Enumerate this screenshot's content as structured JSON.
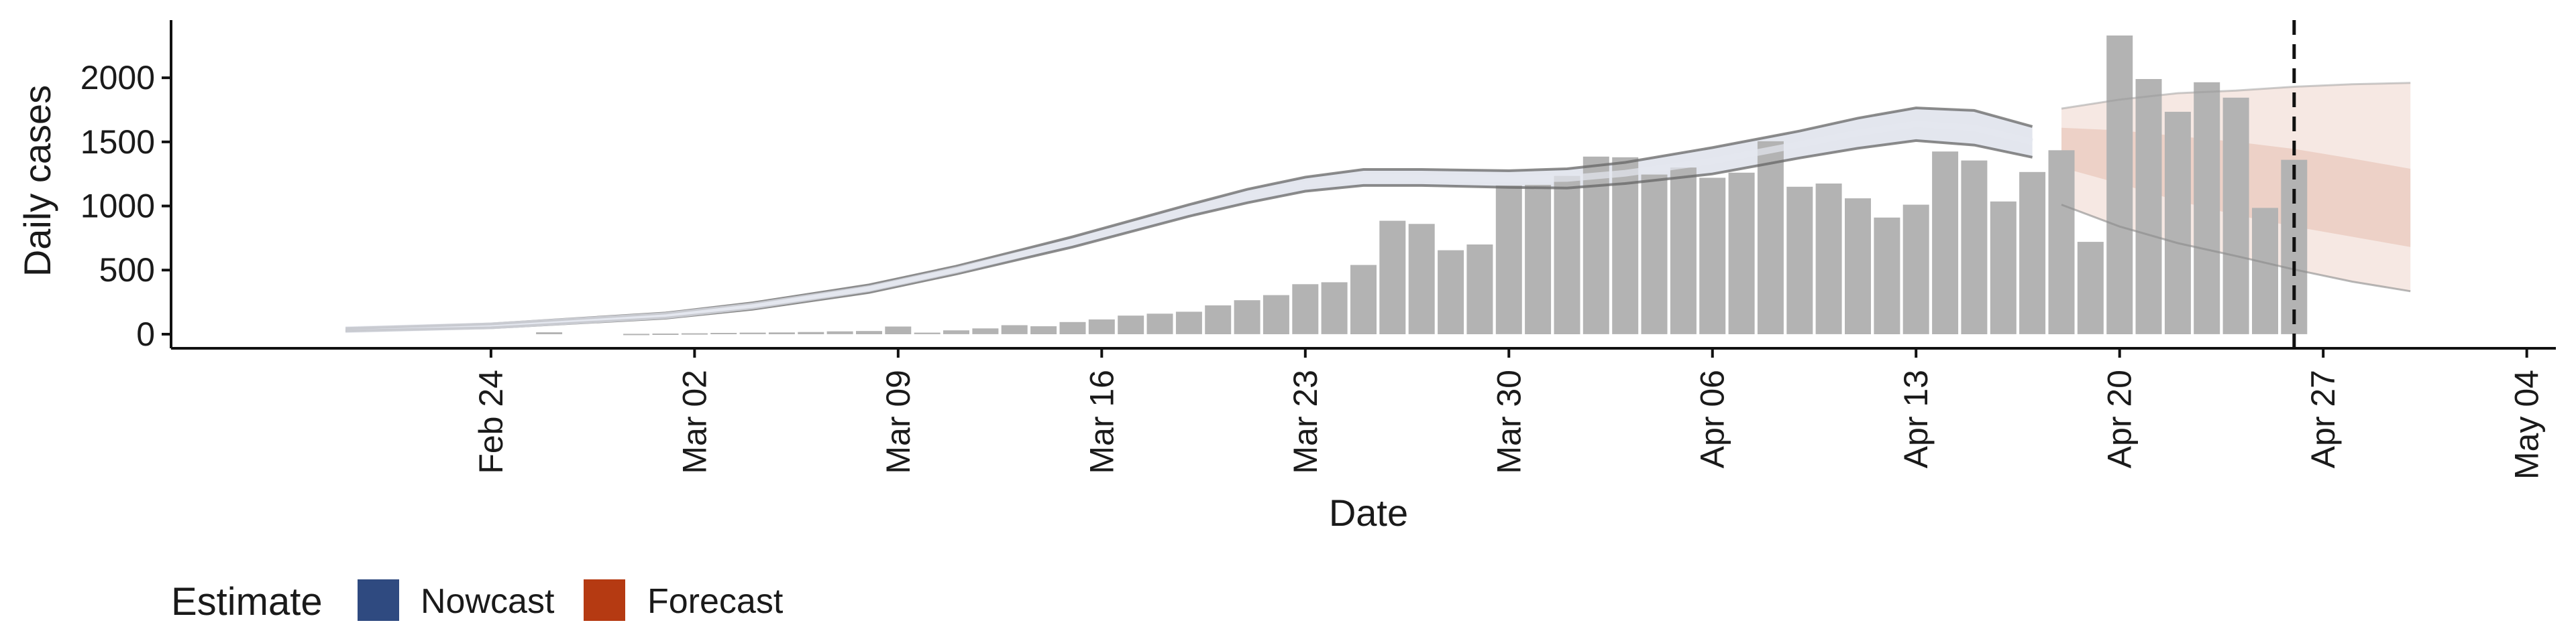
{
  "chart_data": {
    "type": "bar",
    "xlabel": "Date",
    "ylabel": "Daily cases",
    "x_axis": {
      "ticks": [
        "2020-02-24",
        "2020-03-02",
        "2020-03-09",
        "2020-03-16",
        "2020-03-23",
        "2020-03-30",
        "2020-04-06",
        "2020-04-13",
        "2020-04-20",
        "2020-04-27",
        "2020-05-04"
      ],
      "tick_labels": [
        "Feb 24",
        "Mar 02",
        "Mar 09",
        "Mar 16",
        "Mar 23",
        "Mar 30",
        "Apr 06",
        "Apr 13",
        "Apr 20",
        "Apr 27",
        "May 04"
      ],
      "range": [
        "2020-02-13",
        "2020-05-05"
      ]
    },
    "y_axis": {
      "ticks": [
        0,
        500,
        1000,
        1500,
        2000
      ],
      "range": [
        -110,
        2450
      ]
    },
    "grid": false,
    "reference_line": {
      "date": "2020-04-26",
      "style": "dashed"
    },
    "reported_cases": {
      "color": "#b3b3b3",
      "dates": [
        "2020-02-26",
        "2020-02-29",
        "2020-03-01",
        "2020-03-02",
        "2020-03-03",
        "2020-03-04",
        "2020-03-05",
        "2020-03-06",
        "2020-03-07",
        "2020-03-08",
        "2020-03-09",
        "2020-03-10",
        "2020-03-11",
        "2020-03-12",
        "2020-03-13",
        "2020-03-14",
        "2020-03-15",
        "2020-03-16",
        "2020-03-17",
        "2020-03-18",
        "2020-03-19",
        "2020-03-20",
        "2020-03-21",
        "2020-03-22",
        "2020-03-23",
        "2020-03-24",
        "2020-03-25",
        "2020-03-26",
        "2020-03-27",
        "2020-03-28",
        "2020-03-29",
        "2020-03-30",
        "2020-03-31",
        "2020-04-01",
        "2020-04-02",
        "2020-04-03",
        "2020-04-04",
        "2020-04-05",
        "2020-04-06",
        "2020-04-07",
        "2020-04-08",
        "2020-04-09",
        "2020-04-10",
        "2020-04-11",
        "2020-04-12",
        "2020-04-13",
        "2020-04-14",
        "2020-04-15",
        "2020-04-16",
        "2020-04-17",
        "2020-04-18",
        "2020-04-19",
        "2020-04-20",
        "2020-04-21",
        "2020-04-22",
        "2020-04-23",
        "2020-04-24",
        "2020-04-25",
        "2020-04-26"
      ],
      "values": [
        15,
        3,
        5,
        7,
        10,
        12,
        14,
        17,
        22,
        25,
        60,
        12,
        30,
        45,
        70,
        62,
        95,
        115,
        145,
        160,
        175,
        225,
        265,
        305,
        390,
        405,
        540,
        885,
        860,
        655,
        700,
        1160,
        1165,
        1235,
        1385,
        1380,
        1245,
        1300,
        1220,
        1260,
        1505,
        1150,
        1175,
        1060,
        910,
        1010,
        1425,
        1355,
        1035,
        1265,
        1435,
        720,
        2330,
        1990,
        1735,
        1965,
        1845,
        985,
        1360
      ]
    },
    "series": [
      {
        "name": "Nowcast",
        "color": "#3b4f86",
        "dates": [
          "2020-02-19",
          "2020-02-24",
          "2020-03-01",
          "2020-03-04",
          "2020-03-08",
          "2020-03-11",
          "2020-03-15",
          "2020-03-19",
          "2020-03-21",
          "2020-03-23",
          "2020-03-25",
          "2020-03-27",
          "2020-03-30",
          "2020-04-01",
          "2020-04-03",
          "2020-04-06",
          "2020-04-09",
          "2020-04-11",
          "2020-04-13",
          "2020-04-15",
          "2020-04-17"
        ],
        "median": [
          35,
          65,
          145,
          220,
          355,
          500,
          720,
          965,
          1075,
          1170,
          1225,
          1220,
          1210,
          1215,
          1255,
          1350,
          1480,
          1570,
          1640,
          1610,
          1500
        ],
        "upper_90": [
          45,
          80,
          165,
          245,
          385,
          530,
          760,
          1010,
          1130,
          1225,
          1285,
          1285,
          1275,
          1290,
          1340,
          1455,
          1585,
          1685,
          1765,
          1745,
          1620
        ],
        "lower_90": [
          25,
          50,
          125,
          195,
          325,
          470,
          680,
          920,
          1025,
          1115,
          1160,
          1160,
          1145,
          1140,
          1175,
          1250,
          1375,
          1450,
          1510,
          1475,
          1380
        ]
      },
      {
        "name": "Forecast",
        "color": "#b5441b",
        "dates": [
          "2020-04-18",
          "2020-04-20",
          "2020-04-22",
          "2020-04-24",
          "2020-04-26",
          "2020-04-28",
          "2020-04-30"
        ],
        "upper_90": [
          1760,
          1830,
          1880,
          1900,
          1930,
          1950,
          1960
        ],
        "upper_50": [
          1610,
          1590,
          1545,
          1500,
          1445,
          1370,
          1290
        ],
        "lower_50": [
          1300,
          1175,
          1040,
          930,
          840,
          760,
          680
        ],
        "lower_90": [
          1010,
          840,
          710,
          610,
          505,
          410,
          335
        ]
      }
    ],
    "legend": {
      "title": "Estimate",
      "position": "bottom-left",
      "items": [
        {
          "label": "Nowcast",
          "color": "#2f4a80"
        },
        {
          "label": "Forecast",
          "color": "#b53a12"
        }
      ]
    }
  }
}
